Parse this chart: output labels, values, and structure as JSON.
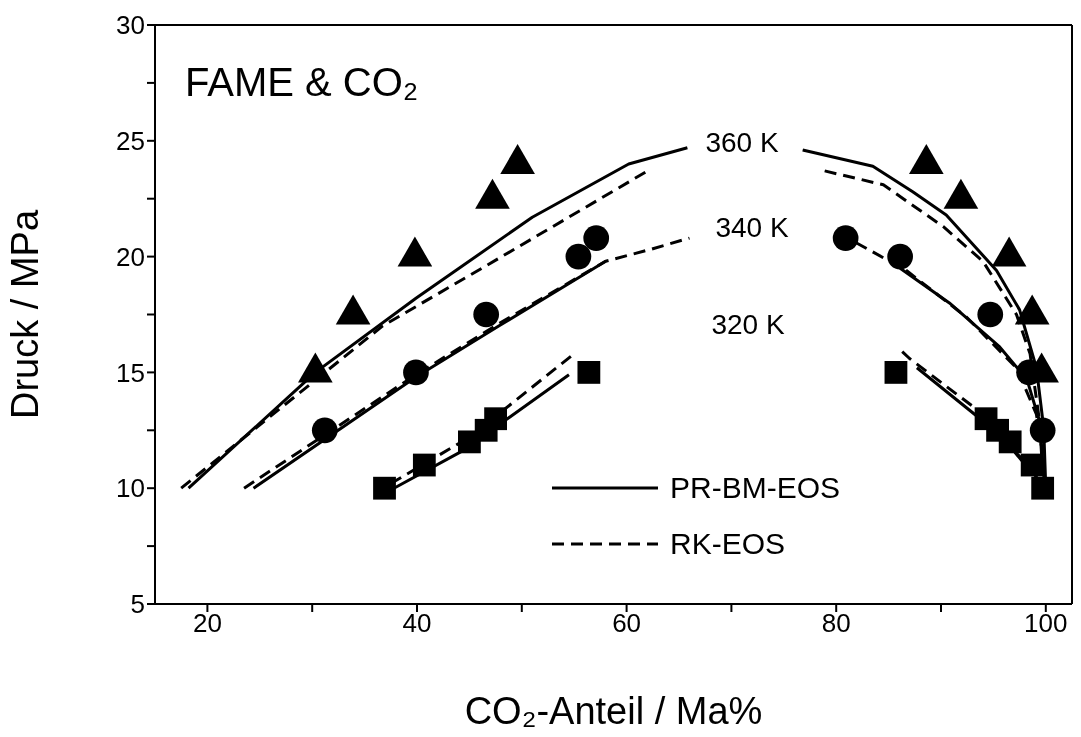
{
  "chart_data": {
    "type": "line",
    "title": "FAME & CO₂",
    "xlabel": "CO₂-Anteil / Ma%",
    "ylabel": "Druck / MPa",
    "xlim": [
      15,
      102.5
    ],
    "xticks": [
      20,
      {
        "value": 30,
        "label": null
      },
      40,
      {
        "value": 50,
        "label": null
      },
      60,
      {
        "value": 70,
        "label": null
      },
      80,
      {
        "value": 90,
        "label": null
      },
      100
    ],
    "ylim": [
      5,
      30
    ],
    "yticks": [
      5,
      {
        "value": 7.5,
        "label": null
      },
      10,
      {
        "value": 12.5,
        "label": null
      },
      15,
      {
        "value": 17.5,
        "label": null
      },
      20,
      {
        "value": 22.5,
        "label": null
      },
      25,
      {
        "value": 27.5,
        "label": null
      },
      30
    ],
    "grid": false,
    "legend": "bottom right",
    "annotations": [
      "360 K",
      "340 K",
      "320 K"
    ],
    "series": [
      {
        "name": "PR-BM-EOS",
        "line_style": "solid",
        "color": "#000000",
        "x": [
          18.2,
          30.3,
          39.9,
          51,
          60.2,
          65.8
        ],
        "values": [
          10,
          15,
          18.2,
          21.7,
          24,
          24.7
        ]
      },
      {
        "line_style": "solid",
        "color": "#000000",
        "x": [
          76.8,
          83.5,
          87.3,
          90.5,
          95.3,
          97.5,
          99.1,
          99.8,
          100
        ],
        "values": [
          24.6,
          23.9,
          22.8,
          21.8,
          19.4,
          17.7,
          15.2,
          12.6,
          10
        ]
      },
      {
        "name": "RK-EOS",
        "line_style": "dashed",
        "color": "#000000",
        "x": [
          17.5,
          36.7,
          46.2,
          62
        ],
        "values": [
          10,
          17,
          19.5,
          23.7
        ]
      },
      {
        "line_style": "dashed",
        "color": "#000000",
        "x": [
          78.9,
          84.5,
          90.2,
          94,
          97.2,
          98.5,
          99.4,
          99.8
        ],
        "values": [
          23.7,
          23.1,
          21.3,
          19.8,
          17.5,
          15.8,
          12.9,
          10
        ]
      },
      {
        "line_style": "solid",
        "color": "#000000",
        "x": [
          24.4,
          39.9,
          47.8,
          58
        ],
        "values": [
          10,
          14.8,
          17,
          19.8
        ]
      },
      {
        "line_style": "solid",
        "color": "#000000",
        "x": [
          86.1,
          90.8,
          95.6,
          98.2,
          99.4,
          99.9
        ],
        "values": [
          19.5,
          18,
          16.1,
          14.7,
          12.9,
          10
        ]
      },
      {
        "line_style": "dashed",
        "color": "#000000",
        "x": [
          23.5,
          39.9,
          47.8,
          58,
          62.2,
          66
        ],
        "values": [
          10,
          14.9,
          17.1,
          19.8,
          20.3,
          20.8
        ]
      },
      {
        "line_style": "dashed",
        "color": "#000000",
        "x": [
          81.9,
          86.7,
          92.4,
          97.2,
          99.1,
          99.7
        ],
        "values": [
          20.6,
          19.4,
          17.4,
          15.2,
          13.2,
          11.5
        ]
      },
      {
        "line_style": "solid",
        "color": "#000000",
        "x": [
          37.8,
          44.3,
          54.5
        ],
        "values": [
          10,
          11.6,
          14.9
        ]
      },
      {
        "line_style": "solid",
        "color": "#000000",
        "x": [
          87.7,
          94,
          97.9,
          99.4
        ],
        "values": [
          15.2,
          12.9,
          11.2,
          10.3
        ]
      },
      {
        "line_style": "dashed",
        "color": "#000000",
        "x": [
          37.5,
          45,
          54.7
        ],
        "values": [
          10.2,
          12.2,
          15.7
        ]
      },
      {
        "line_style": "dashed",
        "color": "#000000",
        "x": [
          86.3,
          87,
          94,
          98.8
        ],
        "values": [
          15.9,
          15.6,
          13.2,
          10.6
        ]
      },
      {
        "type": "scatter",
        "marker": "triangle",
        "color": "#000000",
        "x": [
          30.3,
          33.9,
          39.8,
          47.2,
          49.6,
          88.6,
          91.9,
          96.5,
          98.7,
          99.6
        ],
        "values": [
          15,
          17.5,
          20,
          22.5,
          24,
          24,
          22.5,
          20,
          17.5,
          15
        ]
      },
      {
        "type": "scatter",
        "marker": "circle",
        "color": "#000000",
        "x": [
          31.2,
          39.9,
          46.6,
          55.4,
          57.1,
          80.9,
          86.1,
          94.7,
          98.4,
          99.7
        ],
        "values": [
          12.5,
          15,
          17.5,
          20,
          20.8,
          20.8,
          20,
          17.5,
          15,
          12.5
        ]
      },
      {
        "type": "scatter",
        "marker": "square",
        "color": "#000000",
        "x": [
          36.9,
          40.7,
          45,
          46.6,
          47.5,
          56.4,
          85.7,
          94.3,
          95.4,
          96.6,
          98.7,
          99.7
        ],
        "values": [
          10,
          11,
          12,
          12.5,
          13,
          15,
          15,
          13,
          12.5,
          12,
          11,
          10
        ]
      }
    ]
  }
}
